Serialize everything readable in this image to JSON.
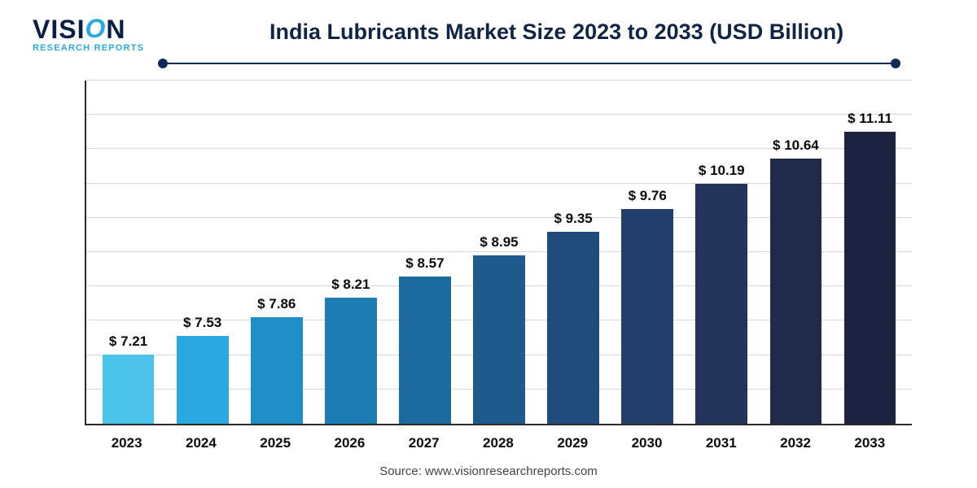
{
  "logo": {
    "main_pre": "VISI",
    "main_swoosh": "O",
    "main_post": "N",
    "sub": "RESEARCH REPORTS"
  },
  "title": "India Lubricants Market Size 2023 to 2033 (USD Billion)",
  "source": "Source: www.visionresearchreports.com",
  "chart": {
    "type": "bar",
    "background_color": "#ffffff",
    "axis_color": "#2a2a2a",
    "grid_color": "#d7d7d7",
    "text_color": "#0a0a0a",
    "ylim_min": 0,
    "ylim_max": 12,
    "grid_count": 10,
    "bar_width_pct": 70,
    "label_fontsize": 17,
    "title_fontsize": 27,
    "value_prefix": "$ ",
    "categories": [
      "2023",
      "2024",
      "2025",
      "2026",
      "2027",
      "2028",
      "2029",
      "2030",
      "2031",
      "2032",
      "2033"
    ],
    "values": [
      7.21,
      7.53,
      7.86,
      8.21,
      8.57,
      8.95,
      9.35,
      9.76,
      10.19,
      10.64,
      11.11
    ],
    "value_labels": [
      "7.21",
      "7.53",
      "7.86",
      "8.21",
      "8.57",
      "8.95",
      "9.35",
      "9.76",
      "10.19",
      "10.64",
      "11.11"
    ],
    "bar_colors": [
      "#4cc4ea",
      "#2aa8e0",
      "#1f8fc9",
      "#1d7cb4",
      "#1d6aa0",
      "#1e5a8d",
      "#1f4c7b",
      "#213f6a",
      "#22345a",
      "#202b4c",
      "#1c2340"
    ],
    "baseline": 6.0
  },
  "rule": {
    "line_color": "#0f2a55",
    "dot_color": "#0f2a55"
  }
}
